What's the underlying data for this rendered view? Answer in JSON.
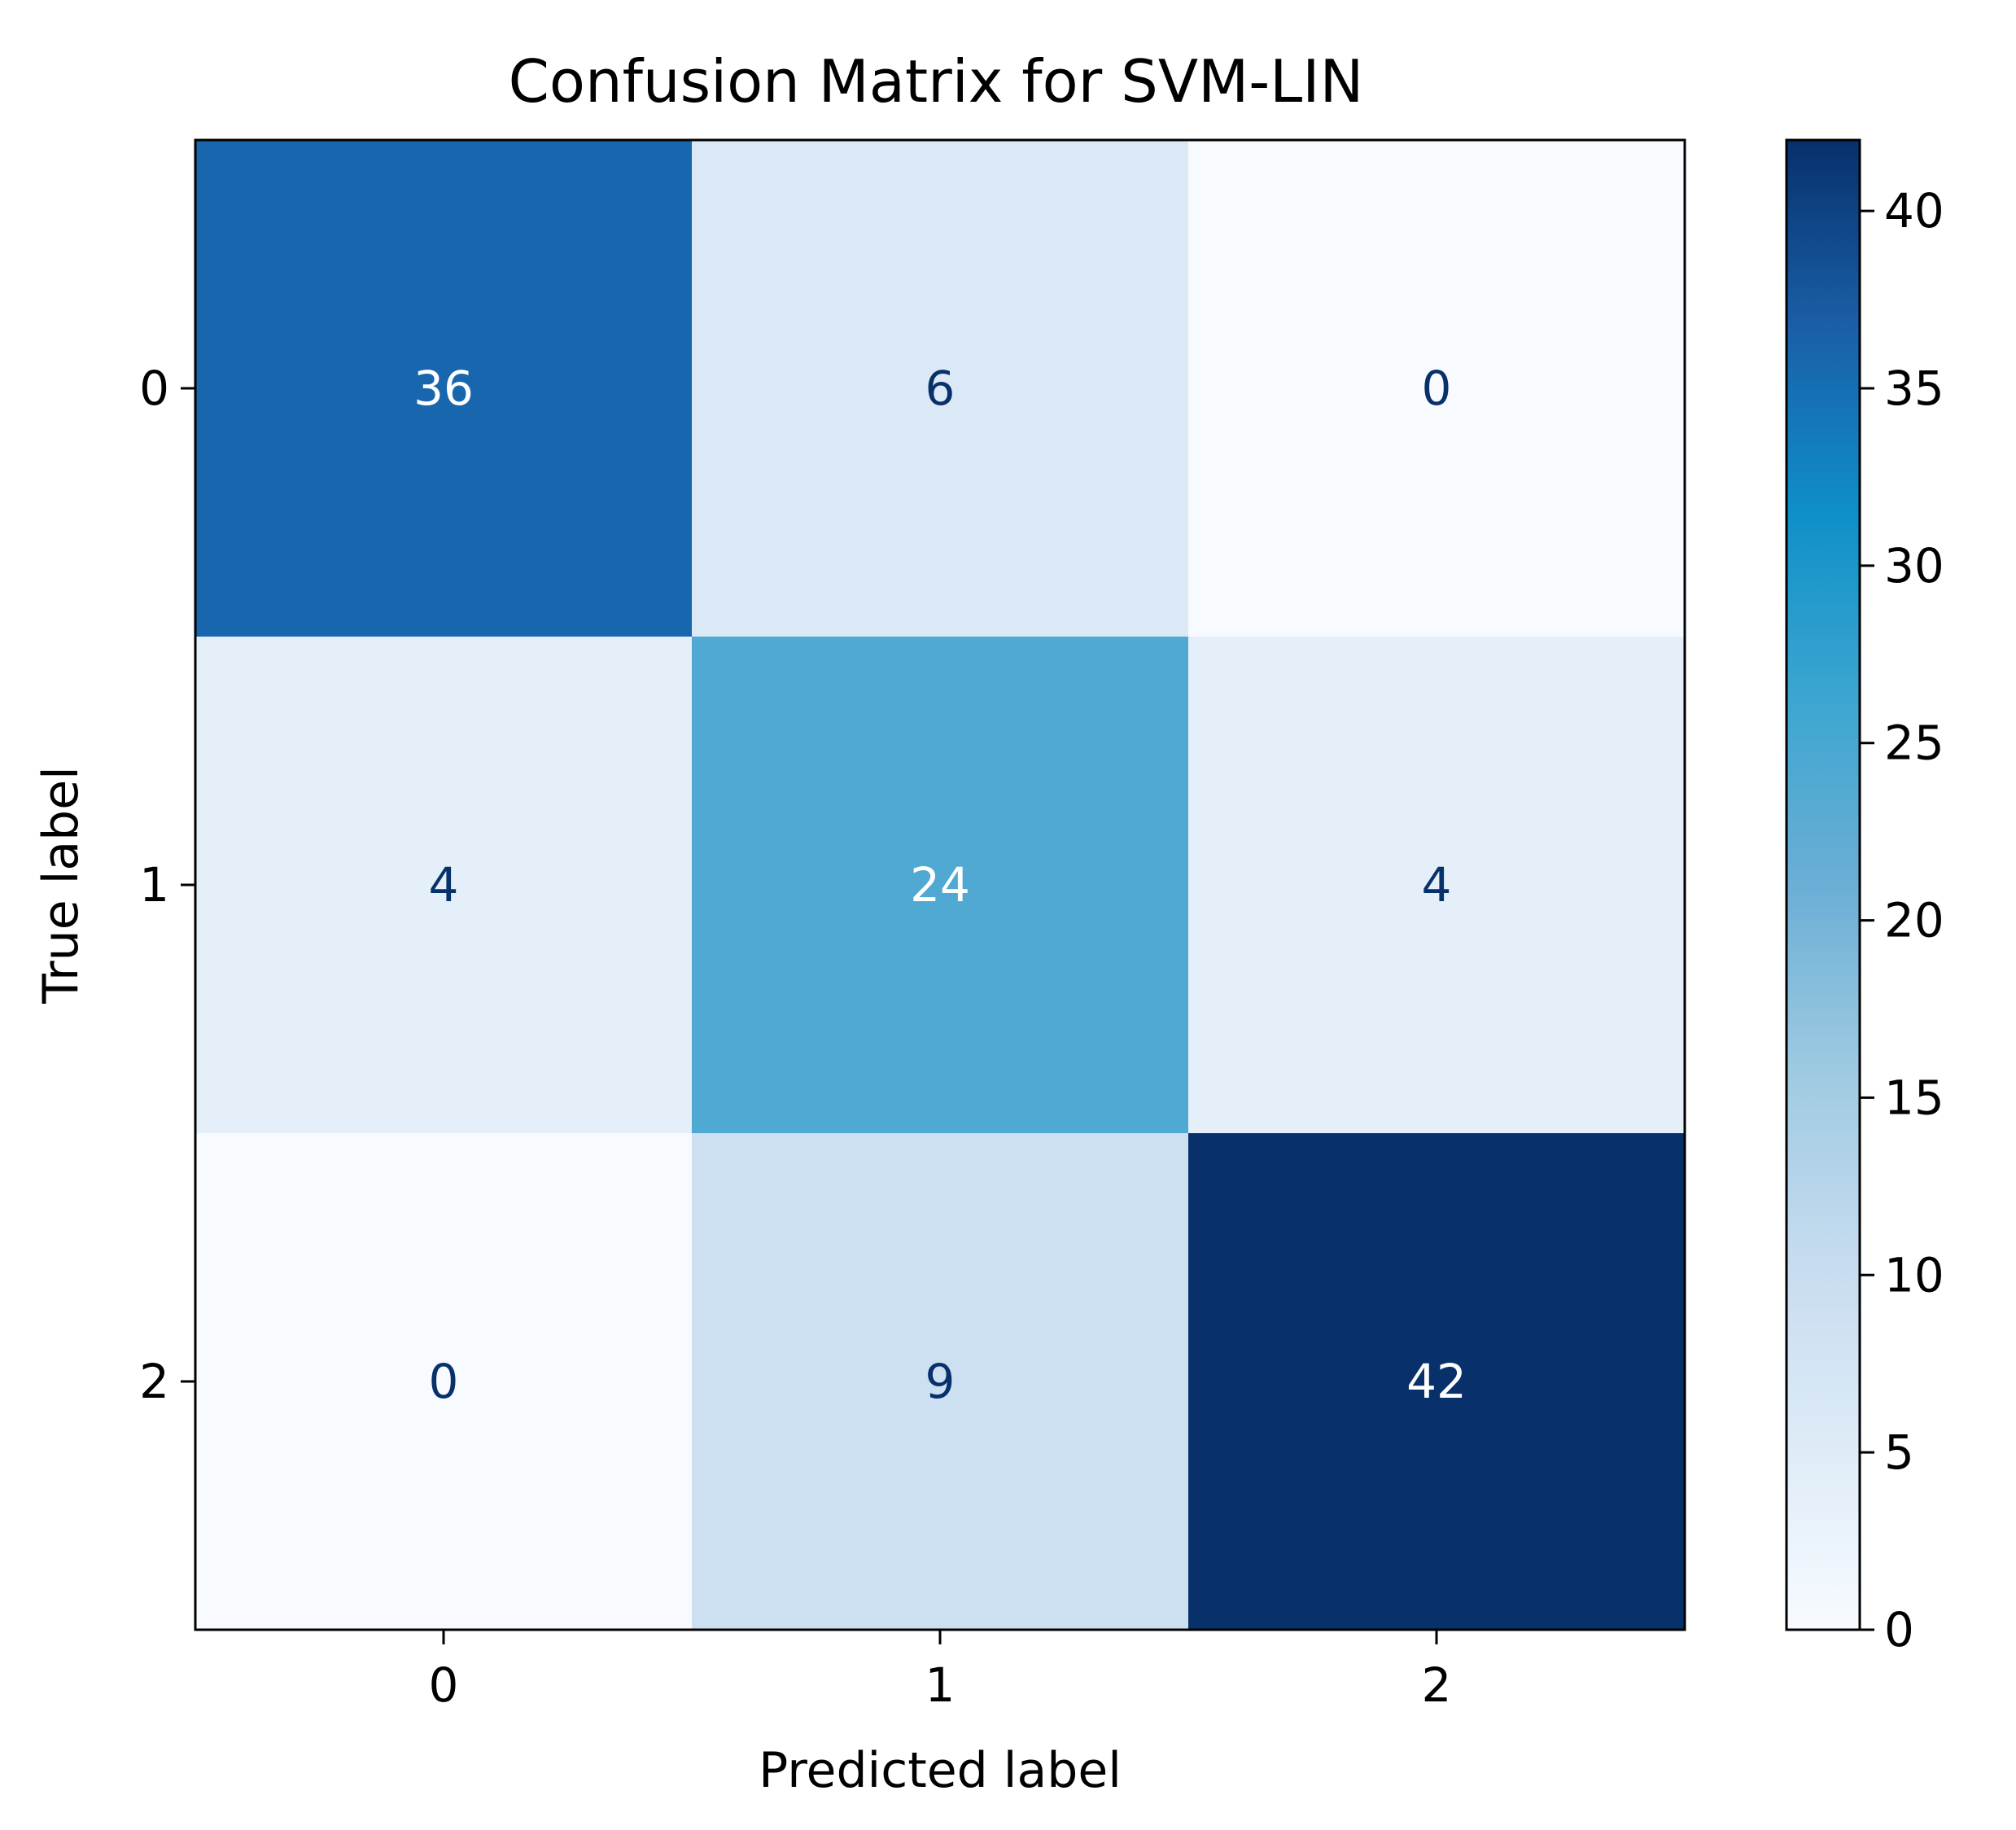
{
  "chart_data": {
    "type": "heatmap",
    "title": "Confusion Matrix for SVM-LIN",
    "xlabel": "Predicted label",
    "ylabel": "True label",
    "x_categories": [
      "0",
      "1",
      "2"
    ],
    "y_categories": [
      "0",
      "1",
      "2"
    ],
    "matrix": [
      [
        36,
        6,
        0
      ],
      [
        4,
        24,
        4
      ],
      [
        0,
        9,
        42
      ]
    ],
    "colormap": "Blues",
    "colorbar": {
      "range": [
        0,
        42
      ],
      "ticks": [
        0,
        5,
        10,
        15,
        20,
        25,
        30,
        35,
        40
      ]
    },
    "text_color_light": "#ffffff",
    "text_color_dark": "#08306b"
  }
}
